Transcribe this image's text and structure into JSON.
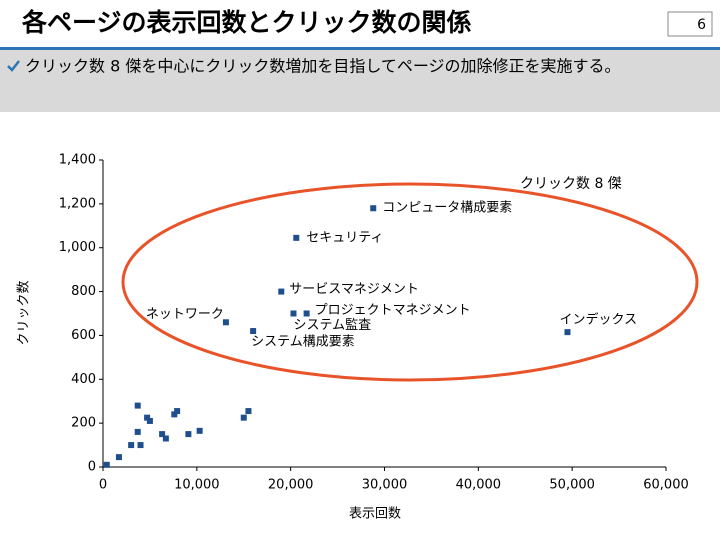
{
  "slide": {
    "title": "各ページの表示回数とクリック数の関係",
    "page_number": "6",
    "bullet": "クリック数 8 傑を中心にクリック数増加を目指してページの加除修正を実施する。"
  },
  "chart_data": {
    "type": "scatter",
    "color": "#1f4e8c",
    "x_label": "表示回数",
    "y_label": "クリック数",
    "annotation": "クリック数 8 傑",
    "x": [
      13100,
      16000,
      19000,
      20300,
      21700,
      20600,
      28800,
      49500,
      400,
      1700,
      3000,
      3700,
      3700,
      4000,
      4700,
      5000,
      6300,
      6700,
      7600,
      7900,
      9100,
      10300,
      15000,
      15500
    ],
    "values": [
      660,
      620,
      800,
      700,
      700,
      1045,
      1180,
      615,
      10,
      45,
      100,
      280,
      160,
      100,
      225,
      210,
      150,
      130,
      240,
      255,
      150,
      165,
      225,
      255
    ],
    "point_labels": [
      "ネットワーク",
      "システム構成要素",
      "サービスマネジメント",
      "システム監査",
      "プロジェクトマネジメント",
      "セキュリティ",
      "コンピュータ構成要素",
      "インデックス",
      null,
      null,
      null,
      null,
      null,
      null,
      null,
      null,
      null,
      null,
      null,
      null,
      null,
      null,
      null,
      null
    ],
    "xlim": [
      0,
      60000
    ],
    "xticks": [
      0,
      {
        "value": 10000,
        "label": "10,000"
      },
      {
        "value": 20000,
        "label": "20,000"
      },
      {
        "value": 30000,
        "label": "30,000"
      },
      {
        "value": 40000,
        "label": "40,000"
      },
      {
        "value": 50000,
        "label": "50,000"
      },
      {
        "value": 60000,
        "label": "60,000"
      }
    ],
    "ylim": [
      0,
      1400
    ],
    "yticks": [
      0,
      200,
      400,
      600,
      800,
      {
        "value": 1000,
        "label": "1,000"
      },
      {
        "value": 1200,
        "label": "1,200"
      },
      {
        "value": 1400,
        "label": "1,400"
      }
    ]
  }
}
